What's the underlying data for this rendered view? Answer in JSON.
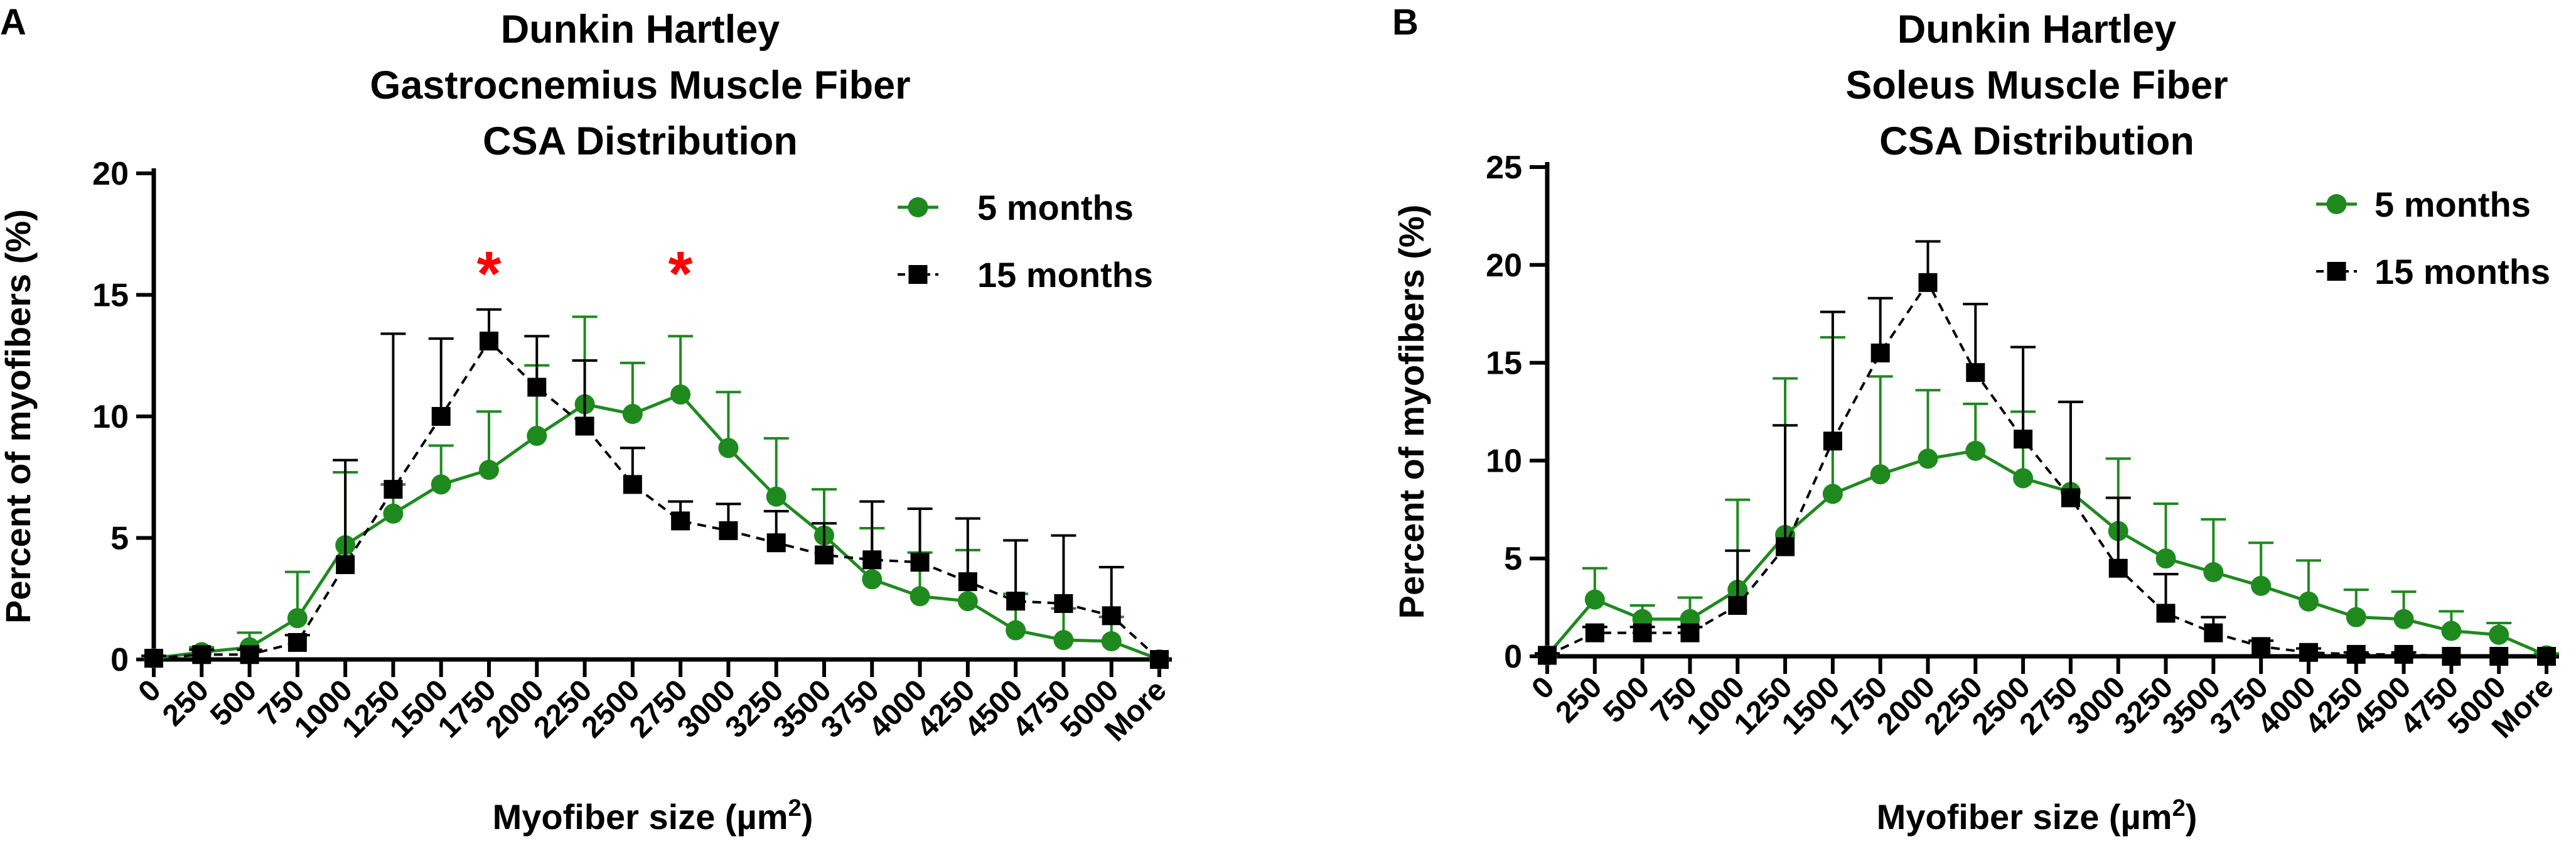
{
  "colors": {
    "series_5m": "#1e8a1e",
    "series_15m": "#000000",
    "significance": "#ff0000",
    "axis": "#000000"
  },
  "chart_data": [
    {
      "type": "line",
      "panel_label": "A",
      "title_lines": [
        "Dunkin Hartley",
        "Gastrocnemius Muscle Fiber",
        "CSA Distribution"
      ],
      "xlabel": "Myofiber size (µm",
      "xlabel_sup": "2",
      "xlabel_close": ")",
      "ylabel": "Percent of myofibers (%)",
      "ylim": [
        0,
        20
      ],
      "yticks": [
        0,
        5,
        10,
        15,
        20
      ],
      "categories": [
        "0",
        "250",
        "500",
        "750",
        "1000",
        "1250",
        "1500",
        "1750",
        "2000",
        "2250",
        "2500",
        "2750",
        "3000",
        "3250",
        "3500",
        "3750",
        "4000",
        "4250",
        "4500",
        "4750",
        "5000",
        "More"
      ],
      "series": [
        {
          "name": "5 months",
          "marker": "circle",
          "line": "solid",
          "values": [
            0.05,
            0.3,
            0.5,
            1.7,
            4.7,
            6.0,
            7.2,
            7.8,
            9.2,
            10.5,
            10.1,
            10.9,
            8.7,
            6.7,
            5.1,
            3.3,
            2.6,
            2.4,
            1.2,
            0.8,
            0.75,
            0.0
          ],
          "error": [
            0.1,
            0.2,
            0.6,
            1.9,
            3.0,
            1.2,
            1.6,
            2.4,
            2.9,
            3.6,
            2.1,
            2.4,
            2.3,
            2.4,
            1.9,
            2.1,
            1.8,
            2.1,
            1.5,
            1.3,
            1.0,
            0.0
          ]
        },
        {
          "name": "15 months",
          "marker": "square",
          "line": "dashed",
          "values": [
            0.05,
            0.2,
            0.2,
            0.7,
            3.9,
            7.0,
            10.0,
            13.1,
            11.2,
            9.6,
            7.2,
            5.7,
            5.3,
            4.8,
            4.3,
            4.1,
            4.0,
            3.2,
            2.4,
            2.3,
            1.8,
            0.0
          ],
          "error": [
            0.1,
            0.2,
            0.2,
            0.3,
            4.3,
            6.4,
            3.2,
            1.3,
            2.1,
            2.7,
            1.5,
            0.8,
            1.1,
            1.3,
            1.3,
            2.4,
            2.2,
            2.6,
            2.5,
            2.8,
            2.0,
            0.0
          ]
        }
      ],
      "significance": [
        {
          "category": "1750",
          "symbol": "*"
        },
        {
          "category": "2750",
          "symbol": "*"
        }
      ],
      "legend_position": "top-right"
    },
    {
      "type": "line",
      "panel_label": "B",
      "title_lines": [
        "Dunkin Hartley",
        "Soleus Muscle Fiber",
        "CSA Distribution"
      ],
      "xlabel": "Myofiber size (µm",
      "xlabel_sup": "2",
      "xlabel_close": ")",
      "ylabel": "Percent of myofibers (%)",
      "ylim": [
        0,
        25
      ],
      "yticks": [
        0,
        5,
        10,
        15,
        20,
        25
      ],
      "categories": [
        "0",
        "250",
        "500",
        "750",
        "1000",
        "1250",
        "1500",
        "1750",
        "2000",
        "2250",
        "2500",
        "2750",
        "3000",
        "3250",
        "3500",
        "3750",
        "4000",
        "4250",
        "4500",
        "4750",
        "5000",
        "More"
      ],
      "series": [
        {
          "name": "5 months",
          "marker": "circle",
          "line": "solid",
          "values": [
            0.05,
            2.9,
            1.9,
            1.9,
            3.4,
            6.2,
            8.3,
            9.3,
            10.1,
            10.5,
            9.1,
            8.4,
            6.4,
            5.0,
            4.3,
            3.6,
            2.8,
            2.0,
            1.9,
            1.3,
            1.1,
            0.05
          ],
          "error": [
            0.1,
            1.6,
            0.7,
            1.1,
            4.6,
            8.0,
            8.0,
            5.0,
            3.5,
            2.4,
            3.4,
            4.6,
            3.7,
            2.8,
            2.7,
            2.2,
            2.1,
            1.4,
            1.4,
            1.0,
            0.6,
            0.1
          ]
        },
        {
          "name": "15 months",
          "marker": "square",
          "line": "dashed",
          "values": [
            0.05,
            1.2,
            1.2,
            1.2,
            2.6,
            5.6,
            11.0,
            15.5,
            19.1,
            14.5,
            11.1,
            8.1,
            4.5,
            2.2,
            1.2,
            0.5,
            0.2,
            0.1,
            0.1,
            0.0,
            0.0,
            0.0
          ],
          "error": [
            0.1,
            0.3,
            0.3,
            0.3,
            2.8,
            6.2,
            6.6,
            2.8,
            2.1,
            3.5,
            4.7,
            4.9,
            3.6,
            2.0,
            0.8,
            0.3,
            0.2,
            0.1,
            0.1,
            0.05,
            0.05,
            0.0
          ]
        }
      ],
      "significance": [],
      "legend_position": "top-right"
    }
  ]
}
